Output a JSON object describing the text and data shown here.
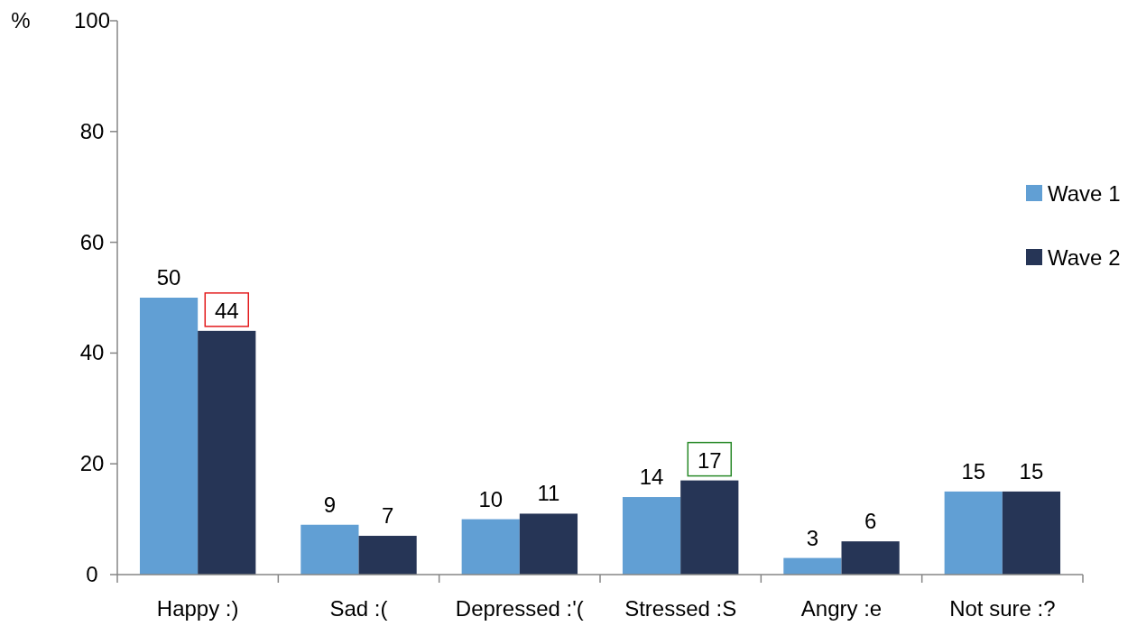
{
  "chart_data": {
    "type": "bar",
    "ylabel": "%",
    "categories": [
      "Happy :)",
      "Sad :(",
      "Depressed :'(",
      "Stressed :S",
      "Angry :e",
      "Not sure :?"
    ],
    "series": [
      {
        "name": "Wave 1",
        "color": "#619fd4",
        "values": [
          50,
          9,
          10,
          14,
          3,
          15
        ]
      },
      {
        "name": "Wave 2",
        "color": "#263556",
        "values": [
          44,
          7,
          11,
          17,
          6,
          15
        ]
      }
    ],
    "ylim": [
      0,
      100
    ],
    "yticks": [
      0,
      20,
      40,
      60,
      80,
      100
    ],
    "grid": false,
    "legend": "right",
    "data_labels": true
  }
}
